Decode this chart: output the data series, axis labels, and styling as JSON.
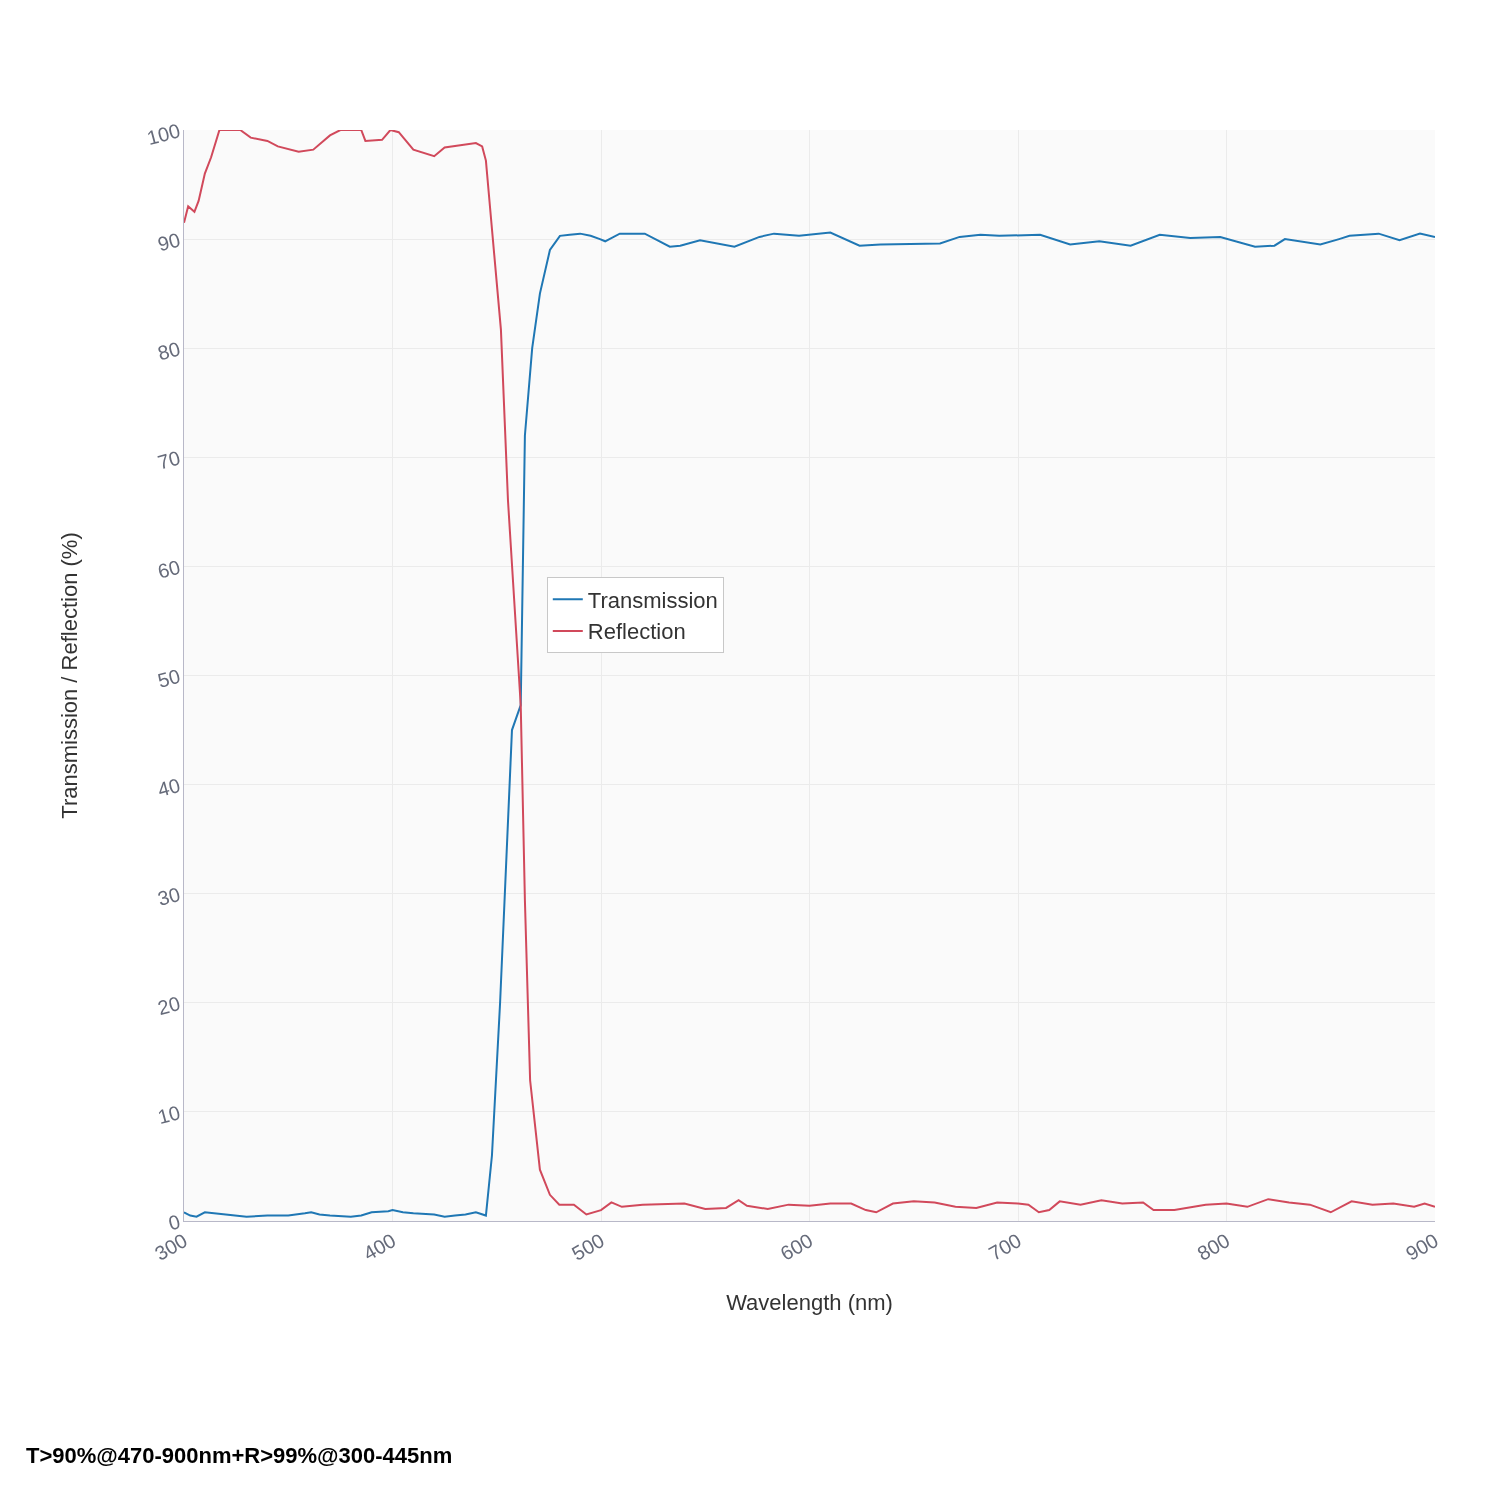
{
  "chart_data": {
    "type": "line",
    "xlabel": "Wavelength (nm)",
    "ylabel": "Transmission / Reflection (%)",
    "annotations": [
      "T>90%@470-900nm+R>99%@300-445nm"
    ],
    "xlim": [
      300,
      900
    ],
    "xticks": [
      300,
      400,
      500,
      600,
      700,
      800,
      900
    ],
    "ylim": [
      0,
      100
    ],
    "yticks": [
      0,
      10,
      20,
      30,
      40,
      50,
      60,
      70,
      80,
      90,
      100
    ],
    "grid": true,
    "legend": "center",
    "line_style": "solid",
    "marker": "none",
    "series": [
      {
        "name": "Transmission",
        "color": "#1f77b4",
        "x": [
          300,
          303,
          306,
          310,
          320,
          330,
          340,
          350,
          358,
          361,
          365,
          370,
          380,
          385,
          390,
          398,
          400,
          405,
          410,
          420,
          425,
          430,
          435,
          440,
          444.8,
          447.7,
          451.6,
          457.3,
          461.5,
          463.5,
          467,
          470.7,
          475.5,
          480.3,
          485,
          490,
          495,
          499.5,
          502,
          509,
          521,
          533,
          538,
          547.5,
          564,
          576,
          583,
          595,
          610,
          624,
          634,
          662.6,
          672,
          682,
          691,
          710.6,
          725,
          739,
          754,
          768,
          782.6,
          797,
          813.7,
          823,
          828,
          845,
          854,
          859,
          873,
          883,
          892.8,
          900
        ],
        "values": [
          0.8,
          0.5,
          0.4,
          0.8,
          0.6,
          0.4,
          0.5,
          0.5,
          0.7,
          0.8,
          0.6,
          0.5,
          0.4,
          0.5,
          0.8,
          0.9,
          1.0,
          0.8,
          0.7,
          0.6,
          0.4,
          0.5,
          0.6,
          0.8,
          0.5,
          6,
          20,
          45,
          47.3,
          72,
          80,
          85,
          89,
          90.3,
          90.4,
          90.5,
          90.3,
          90.0,
          89.8,
          90.5,
          90.5,
          89.3,
          89.4,
          89.9,
          89.3,
          90.2,
          90.5,
          90.3,
          90.6,
          89.4,
          89.5,
          89.6,
          90.2,
          90.4,
          90.3,
          90.4,
          89.5,
          89.8,
          89.4,
          90.4,
          90.1,
          90.2,
          89.3,
          89.4,
          90.0,
          89.5,
          90.0,
          90.3,
          90.5,
          89.9,
          90.5,
          90.2
        ]
      },
      {
        "name": "Reflection",
        "color": "#d1495b",
        "x": [
          300,
          302,
          305,
          307,
          310,
          313,
          317,
          327,
          332,
          340,
          345,
          355,
          362,
          370,
          375,
          385,
          387,
          395,
          399,
          403,
          410,
          420,
          425,
          440,
          443,
          444.8,
          447.2,
          452,
          455.4,
          461.5,
          463.5,
          466,
          470.7,
          475.5,
          480,
          487,
          493,
          500,
          505,
          510,
          520,
          540,
          550,
          560,
          566,
          570,
          580,
          590,
          600,
          610,
          620,
          627,
          632,
          640,
          650,
          660,
          670,
          680,
          690,
          700,
          705,
          710,
          715,
          720,
          730,
          740,
          750,
          760,
          765,
          775,
          790,
          800,
          810,
          820,
          830,
          840,
          850,
          860,
          870,
          880,
          890,
          895,
          900
        ],
        "values": [
          91.5,
          93,
          92.5,
          93.5,
          96,
          97.5,
          100,
          100,
          99.3,
          99,
          98.5,
          98,
          98.2,
          99.5,
          100,
          100,
          99,
          99.1,
          100,
          99.8,
          98.2,
          97.6,
          98.4,
          98.8,
          98.5,
          97.2,
          92,
          81.7,
          66,
          47.3,
          29.4,
          12.9,
          4.7,
          2.4,
          1.5,
          1.5,
          0.6,
          1.0,
          1.7,
          1.3,
          1.5,
          1.6,
          1.1,
          1.2,
          1.9,
          1.4,
          1.1,
          1.5,
          1.4,
          1.6,
          1.6,
          1.0,
          0.8,
          1.6,
          1.8,
          1.7,
          1.3,
          1.2,
          1.7,
          1.6,
          1.5,
          0.8,
          1.0,
          1.8,
          1.5,
          1.9,
          1.6,
          1.7,
          1.0,
          1.0,
          1.5,
          1.6,
          1.3,
          2.0,
          1.7,
          1.5,
          0.8,
          1.8,
          1.5,
          1.6,
          1.3,
          1.6,
          1.3
        ]
      }
    ]
  }
}
